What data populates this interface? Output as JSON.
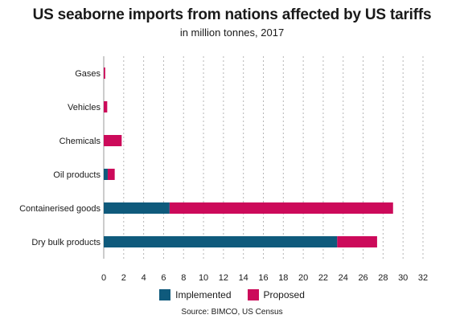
{
  "header": {
    "title": "US seaborne imports from nations affected by US tariffs",
    "subtitle": "in million tonnes, 2017"
  },
  "legend": {
    "implemented": "Implemented",
    "proposed": "Proposed"
  },
  "source": "Source: BIMCO, US Census",
  "colors": {
    "implemented": "#0f5a7c",
    "proposed": "#cc0a5a",
    "grid": "#b5b5b5",
    "text": "#1a1a1a"
  },
  "chart_data": {
    "type": "bar",
    "orientation": "horizontal",
    "stacked": true,
    "title": "US seaborne imports from nations affected by US tariffs",
    "subtitle": "in million tonnes, 2017",
    "categories": [
      "Gases",
      "Vehicles",
      "Chemicals",
      "Oil products",
      "Containerised goods",
      "Dry bulk products"
    ],
    "series": [
      {
        "name": "Implemented",
        "values": [
          0,
          0,
          0,
          0.4,
          6.6,
          23.4
        ]
      },
      {
        "name": "Proposed",
        "values": [
          0.15,
          0.35,
          1.8,
          0.7,
          22.4,
          4.0
        ]
      }
    ],
    "xlim": [
      0,
      32
    ],
    "xticks": [
      0,
      2,
      4,
      6,
      8,
      10,
      12,
      14,
      16,
      18,
      20,
      22,
      24,
      26,
      28,
      30,
      32
    ],
    "grid": "vertical dashed",
    "legend_position": "bottom"
  }
}
